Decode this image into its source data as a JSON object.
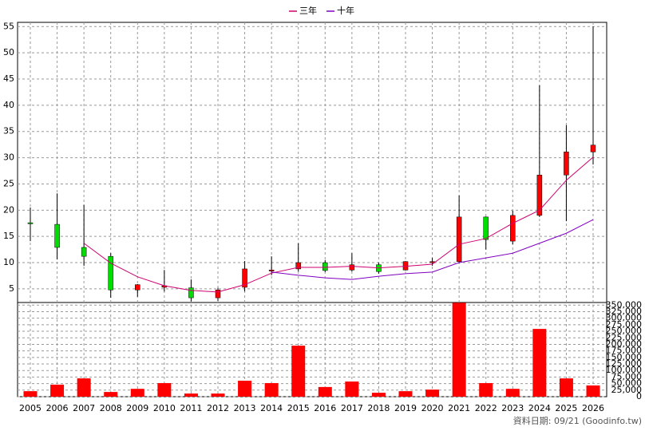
{
  "chart_data": {
    "type": "candlestick",
    "categories": [
      "2005",
      "2006",
      "2007",
      "2008",
      "2009",
      "2010",
      "2011",
      "2012",
      "2013",
      "2014",
      "2015",
      "2016",
      "2017",
      "2018",
      "2019",
      "2020",
      "2021",
      "2022",
      "2023",
      "2024",
      "2025",
      "2026"
    ],
    "open": [
      17.6,
      17.3,
      12.9,
      11.2,
      4.8,
      5.3,
      5.2,
      3.3,
      5.3,
      8.4,
      8.8,
      10,
      8.6,
      9.6,
      8.6,
      10,
      10.2,
      18.7,
      14.1,
      19,
      26.7,
      31.1
    ],
    "high": [
      20.5,
      23.2,
      21,
      11.8,
      5.9,
      8.6,
      6.8,
      5.2,
      10.3,
      11.2,
      13.7,
      10.5,
      11.8,
      10,
      10.3,
      10.9,
      22.8,
      18.8,
      19.9,
      43.8,
      36.2,
      55
    ],
    "low": [
      14.1,
      10.6,
      9.4,
      3.3,
      3.5,
      4.5,
      2.6,
      2.7,
      4.5,
      7.6,
      8.3,
      8.2,
      8.3,
      7.9,
      8.5,
      9.4,
      9.9,
      12.5,
      13.5,
      18.7,
      17.9,
      28.7
    ],
    "close": [
      17.4,
      12.9,
      11.2,
      4.8,
      5.8,
      5.6,
      3.3,
      4.8,
      8.8,
      8.6,
      10,
      8.5,
      9.6,
      8.3,
      10.2,
      10.2,
      18.7,
      14.4,
      19,
      26.7,
      31.1,
      32.4
    ],
    "up_color": "#ff0000",
    "down_color": "#00dd00",
    "ylim": [
      2.4,
      55.8
    ],
    "yticks": [
      5,
      10,
      15,
      20,
      25,
      30,
      35,
      40,
      45,
      50,
      55
    ],
    "grid": true,
    "series": [
      {
        "name": "三年",
        "color": "#d0006f",
        "values": [
          null,
          null,
          13.7,
          9.9,
          7.3,
          5.6,
          4.7,
          4.4,
          5.8,
          8.0,
          9.1,
          9.1,
          9.3,
          9.0,
          9.3,
          9.7,
          13.5,
          14.6,
          17.5,
          20,
          25.7,
          30.1
        ]
      },
      {
        "name": "十年",
        "color": "#8000c0",
        "values": [
          null,
          null,
          null,
          null,
          null,
          null,
          null,
          null,
          null,
          8.2,
          7.6,
          7.1,
          6.8,
          7.4,
          7.9,
          8.2,
          10,
          10.9,
          11.8,
          13.7,
          15.6,
          18.2
        ]
      }
    ],
    "volume": {
      "color": "#ff0000",
      "values": [
        21000,
        46000,
        70000,
        18000,
        30000,
        52000,
        12000,
        12000,
        61000,
        52000,
        195000,
        37000,
        58000,
        15000,
        21000,
        27000,
        359000,
        52000,
        30000,
        259000,
        70000,
        43000
      ],
      "ylim": [
        0,
        360000
      ],
      "yticks": [
        0,
        {
          "value": 25000,
          "label": "25,000"
        },
        {
          "value": 50000,
          "label": "50,000"
        },
        {
          "value": 75000,
          "label": "75,000"
        },
        {
          "value": 100000,
          "label": "100,000"
        },
        {
          "value": 125000,
          "label": "125,000"
        },
        {
          "value": 150000,
          "label": "150,000"
        },
        {
          "value": 175000,
          "label": "175,000"
        },
        {
          "value": 200000,
          "label": "200,000"
        },
        {
          "value": 225000,
          "label": "225,000"
        },
        {
          "value": 250000,
          "label": "250,000"
        },
        {
          "value": 275000,
          "label": "275,000"
        },
        {
          "value": 300000,
          "label": "300,000"
        },
        {
          "value": 325000,
          "label": "325,000"
        },
        {
          "value": 350000,
          "label": "350,000"
        }
      ]
    },
    "footer": "資料日期: 09/21 (Goodinfo.tw)"
  }
}
